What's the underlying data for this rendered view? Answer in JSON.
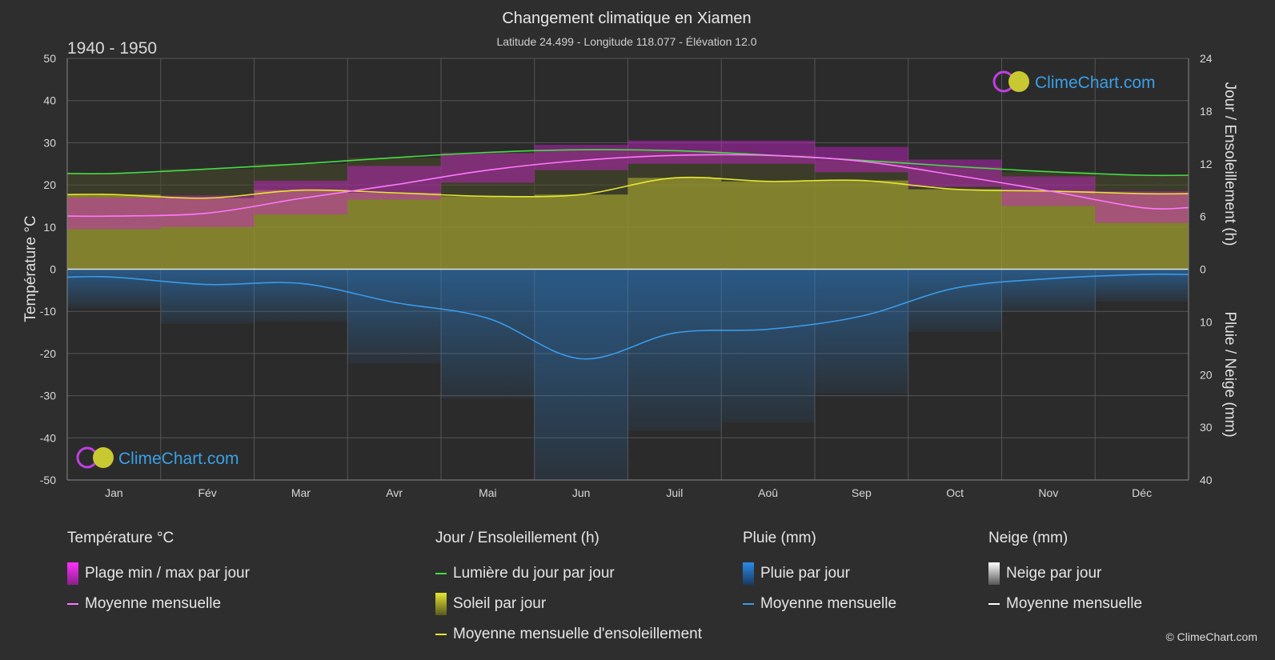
{
  "header": {
    "title": "Changement climatique en Xiamen",
    "subtitle": "Latitude 24.499 - Longitude 118.077 - Élévation 12.0",
    "period": "1940 - 1950"
  },
  "logo": {
    "text": "ClimeChart.com"
  },
  "copyright": "© ClimeChart.com",
  "colors": {
    "background": "#2e2e2e",
    "temp_range": "#d020d0",
    "temp_mean": "#ff77ff",
    "daylight": "#44dd44",
    "sunshine": "#b8b830",
    "sunshine_mean": "#e6e632",
    "rain": "#2a7fd0",
    "rain_mean": "#3a9ae8",
    "snow": "#ffffff",
    "logo_text": "#3aa0e8"
  },
  "chart_data": {
    "type": "area",
    "months": [
      "Jan",
      "Fév",
      "Mar",
      "Avr",
      "Mai",
      "Jun",
      "Juil",
      "Aoû",
      "Sep",
      "Oct",
      "Nov",
      "Déc"
    ],
    "axes": {
      "left": {
        "label": "Température °C",
        "ticks": [
          50,
          40,
          30,
          20,
          10,
          0,
          -10,
          -20,
          -30,
          -40,
          -50
        ],
        "range": [
          -50,
          50
        ]
      },
      "right_top": {
        "label": "Jour / Ensoleillement (h)",
        "ticks": [
          24,
          18,
          12,
          6,
          0
        ],
        "range": [
          0,
          24
        ]
      },
      "right_bottom": {
        "label": "Pluie / Neige (mm)",
        "ticks": [
          0,
          10,
          20,
          30,
          40
        ],
        "range": [
          0,
          40
        ]
      }
    },
    "grid": true,
    "series": [
      {
        "name": "Lumière du jour par jour",
        "unit": "h",
        "values": [
          10.9,
          11.4,
          12.0,
          12.7,
          13.3,
          13.6,
          13.5,
          13.0,
          12.4,
          11.7,
          11.1,
          10.7
        ]
      },
      {
        "name": "Moyenne mensuelle d'ensoleillement",
        "unit": "h",
        "values": [
          8.5,
          8.1,
          9.0,
          8.7,
          8.3,
          8.5,
          10.4,
          10.0,
          10.1,
          9.1,
          8.9,
          8.6
        ]
      },
      {
        "name": "Moyenne mensuelle",
        "quantity": "température",
        "unit": "°C",
        "values": [
          12.6,
          13.3,
          16.8,
          20.0,
          23.5,
          25.8,
          27.0,
          27.0,
          25.6,
          22.3,
          18.6,
          14.6
        ]
      },
      {
        "name": "Plage min / max par jour",
        "unit": "°C",
        "min": [
          9.5,
          10.0,
          13.0,
          16.5,
          20.5,
          23.5,
          25.0,
          25.0,
          23.0,
          19.5,
          15.0,
          11.0
        ],
        "max": [
          17.0,
          17.5,
          21.0,
          24.5,
          27.5,
          29.5,
          30.5,
          30.5,
          29.0,
          26.0,
          22.0,
          18.5
        ]
      },
      {
        "name": "Moyenne mensuelle",
        "quantity": "pluie",
        "unit": "mm",
        "values": [
          1.5,
          2.9,
          2.7,
          6.3,
          9.3,
          17.0,
          12.1,
          11.4,
          8.9,
          3.6,
          1.8,
          1.0
        ]
      },
      {
        "name": "Moyenne mensuelle",
        "quantity": "neige",
        "unit": "mm",
        "values": [
          0,
          0,
          0,
          0,
          0,
          0,
          0,
          0,
          0,
          0,
          0,
          0
        ]
      }
    ]
  },
  "legend": {
    "temperature": {
      "title": "Température °C",
      "range": "Plage min / max par jour",
      "mean": "Moyenne mensuelle"
    },
    "sun": {
      "title": "Jour / Ensoleillement (h)",
      "daylight": "Lumière du jour par jour",
      "sunshine": "Soleil par jour",
      "sunshine_mean": "Moyenne mensuelle d'ensoleillement"
    },
    "rain": {
      "title": "Pluie (mm)",
      "daily": "Pluie par jour",
      "mean": "Moyenne mensuelle"
    },
    "snow": {
      "title": "Neige (mm)",
      "daily": "Neige par jour",
      "mean": "Moyenne mensuelle"
    }
  }
}
